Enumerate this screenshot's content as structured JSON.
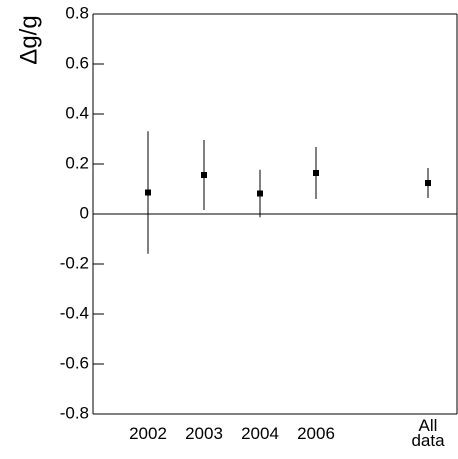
{
  "chart_data": {
    "type": "errorbar",
    "y_label": "Δg/g",
    "categories": [
      "2002",
      "2003",
      "2004",
      "2006",
      null,
      "All data"
    ],
    "values": [
      0.086,
      0.156,
      0.082,
      0.164,
      null,
      0.124
    ],
    "errors": [
      0.245,
      0.14,
      0.095,
      0.104,
      null,
      0.06
    ],
    "color": "#000000",
    "ylim": [
      -0.8,
      0.8
    ],
    "yticks": [
      -0.8,
      -0.6,
      -0.4,
      -0.2,
      0,
      0.2,
      0.4,
      0.6,
      0.8
    ],
    "zero_line": true
  }
}
